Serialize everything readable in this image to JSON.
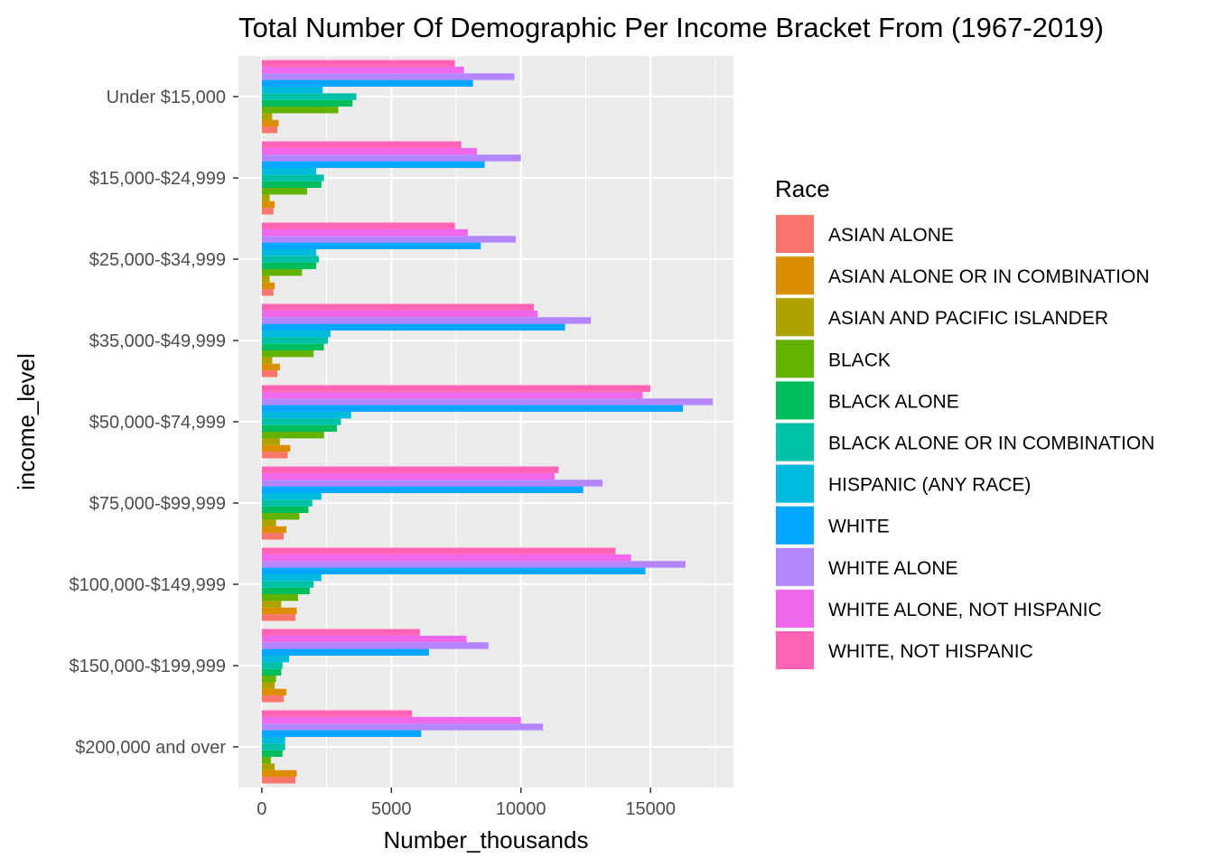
{
  "chart_data": {
    "type": "bar",
    "orientation": "horizontal",
    "title": "Total Number Of Demographic Per Income Bracket From (1967-2019)",
    "xlabel": "Number_thousands",
    "ylabel": "income_level",
    "xlim": [
      -900,
      18200
    ],
    "x_ticks": [
      0,
      5000,
      10000,
      15000
    ],
    "grid": true,
    "legend_title": "Race",
    "legend_position": "right",
    "panel_background": "#ebebeb",
    "categories": [
      "Under $15,000",
      "$15,000-$24,999",
      "$25,000-$34,999",
      "$35,000-$49,999",
      "$50,000-$74,999",
      "$75,000-$99,999",
      "$100,000-$149,999",
      "$150,000-$199,999",
      "$200,000 and over"
    ],
    "series": [
      {
        "name": "ASIAN ALONE",
        "color": "#F8766D",
        "values": [
          600,
          450,
          450,
          600,
          1000,
          850,
          1300,
          850,
          1300
        ]
      },
      {
        "name": "ASIAN ALONE OR IN COMBINATION",
        "color": "#DB8E00",
        "values": [
          650,
          500,
          500,
          700,
          1100,
          950,
          1350,
          950,
          1350
        ]
      },
      {
        "name": "ASIAN AND PACIFIC ISLANDER",
        "color": "#AEA200",
        "values": [
          400,
          300,
          300,
          400,
          700,
          550,
          750,
          500,
          500
        ]
      },
      {
        "name": "BLACK",
        "color": "#64B200",
        "values": [
          2950,
          1750,
          1550,
          2000,
          2400,
          1450,
          1400,
          550,
          350
        ]
      },
      {
        "name": "BLACK ALONE",
        "color": "#00BD5C",
        "values": [
          3500,
          2300,
          2100,
          2400,
          2900,
          1800,
          1850,
          750,
          800
        ]
      },
      {
        "name": "BLACK ALONE OR IN COMBINATION",
        "color": "#00C1A7",
        "values": [
          3650,
          2400,
          2200,
          2550,
          3050,
          1950,
          2000,
          800,
          900
        ]
      },
      {
        "name": "HISPANIC (ANY RACE)",
        "color": "#00BADE",
        "values": [
          2350,
          2100,
          2100,
          2650,
          3450,
          2300,
          2300,
          1050,
          900
        ]
      },
      {
        "name": "WHITE",
        "color": "#00A6FF",
        "values": [
          8150,
          8600,
          8450,
          11700,
          16250,
          12400,
          14800,
          6450,
          6150
        ]
      },
      {
        "name": "WHITE ALONE",
        "color": "#B385FF",
        "values": [
          9750,
          10000,
          9800,
          12700,
          17400,
          13150,
          16350,
          8750,
          10850
        ]
      },
      {
        "name": "WHITE ALONE, NOT HISPANIC",
        "color": "#EF67EB",
        "values": [
          7800,
          8300,
          7950,
          10650,
          14700,
          11300,
          14250,
          7900,
          10000
        ]
      },
      {
        "name": "WHITE, NOT HISPANIC",
        "color": "#FF63B6",
        "values": [
          7450,
          7700,
          7450,
          10500,
          15000,
          11450,
          13650,
          6100,
          5800
        ]
      }
    ]
  }
}
